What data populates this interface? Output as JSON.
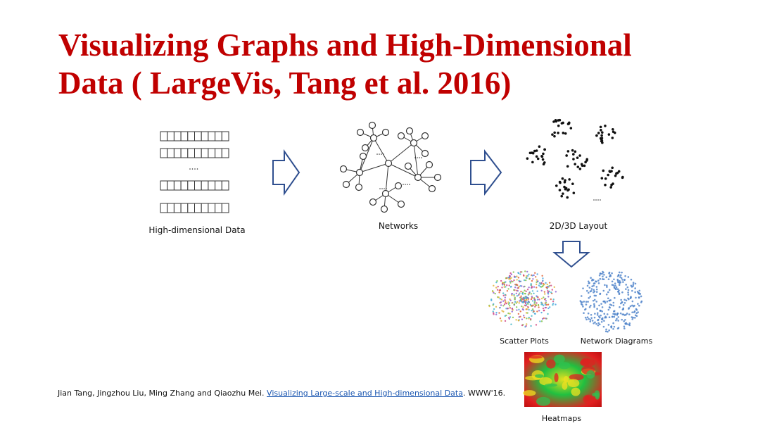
{
  "title": {
    "line1": "Visualizing Graphs and High-Dimensional",
    "line2": "Data ( LargeVis, Tang et al. 2016)"
  },
  "stages": {
    "input": "High-dimensional Data",
    "network": "Networks",
    "layout": "2D/3D Layout"
  },
  "outputs": {
    "scatter": "Scatter Plots",
    "network": "Network Diagrams",
    "heatmap": "Heatmaps"
  },
  "citation": {
    "authors": "Jian Tang, Jingzhou Liu, Ming Zhang and Qiaozhu Mei. ",
    "link": "Visualizing Large-scale and High-dimensional Data",
    "venue": ". WWW'16."
  }
}
